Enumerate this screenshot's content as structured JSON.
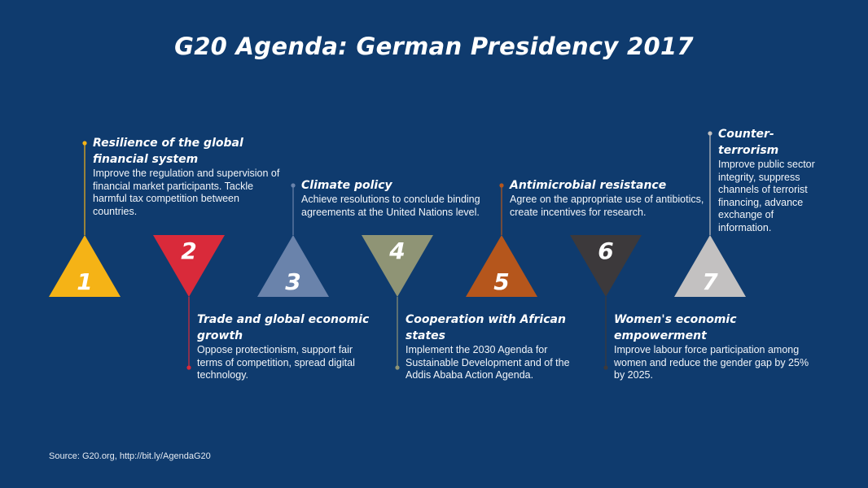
{
  "title": "G20 Agenda: German Presidency 2017",
  "source": "Source: G20.org, http://bit.ly/AgendaG20",
  "items": [
    {
      "number": "1",
      "title": "Resilience of the global financial system",
      "description": "Improve the regulation and supervision of financial market participants. Tackle harmful tax competition between countries.",
      "color": "#f5b316",
      "direction": "up"
    },
    {
      "number": "2",
      "title": "Trade and global economic growth",
      "description": "Oppose protectionism, support fair terms of competition, spread digital technology.",
      "color": "#d92a3a",
      "direction": "down"
    },
    {
      "number": "3",
      "title": "Climate policy",
      "description": "Achieve resolutions to conclude binding agreements at the United Nations level.",
      "color": "#6a83ab",
      "direction": "up"
    },
    {
      "number": "4",
      "title": "Cooperation with African states",
      "description": "Implement the 2030 Agenda for Sustainable Development and of the Addis Ababa Action Agenda.",
      "color": "#8f9475",
      "direction": "down"
    },
    {
      "number": "5",
      "title": "Antimicrobial resistance",
      "description": "Agree on the appropriate use of antibiotics, create incentives for research.",
      "color": "#b5561c",
      "direction": "up"
    },
    {
      "number": "6",
      "title": "Women's economic empowerment",
      "description": "Improve labour force participation among women and reduce the gender gap by 25% by 2025.",
      "color": "#3c393b",
      "direction": "down"
    },
    {
      "number": "7",
      "title": "Counter-terrorism",
      "description": "Improve public sector integrity, suppress channels of terrorist financing, advance exchange of information.",
      "color": "#c3c1c1",
      "direction": "up"
    }
  ]
}
